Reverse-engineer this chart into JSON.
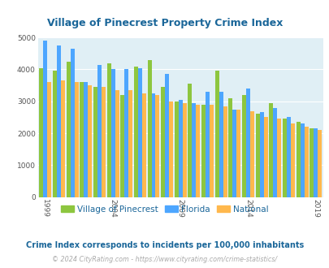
{
  "title": "Village of Pinecrest Property Crime Index",
  "subtitle": "Crime Index corresponds to incidents per 100,000 inhabitants",
  "footer": "© 2024 CityRating.com - https://www.cityrating.com/crime-statistics/",
  "years": [
    1999,
    2000,
    2001,
    2002,
    2003,
    2004,
    2005,
    2006,
    2007,
    2008,
    2009,
    2010,
    2011,
    2012,
    2013,
    2014,
    2015,
    2016,
    2017,
    2018,
    2019
  ],
  "pinecrest": [
    4050,
    3950,
    4250,
    3600,
    3450,
    4200,
    3200,
    4100,
    4300,
    3450,
    3000,
    3550,
    2900,
    3950,
    3100,
    3200,
    2600,
    2950,
    2450,
    2350,
    2150
  ],
  "florida": [
    4900,
    4750,
    4650,
    3600,
    4150,
    4000,
    4000,
    4050,
    3250,
    3850,
    3050,
    2950,
    3300,
    3300,
    2750,
    3400,
    2650,
    2800,
    2500,
    2300,
    2150
  ],
  "national": [
    3600,
    3650,
    3600,
    3500,
    3450,
    3350,
    3350,
    3250,
    3200,
    3000,
    2950,
    2900,
    2900,
    2850,
    2750,
    2700,
    2500,
    2450,
    2300,
    2200,
    2100
  ],
  "pinecrest_color": "#8dc63f",
  "florida_color": "#4da6ff",
  "national_color": "#ffb84d",
  "plot_background": "#e0eff5",
  "ylim": [
    0,
    5000
  ],
  "yticks": [
    0,
    1000,
    2000,
    3000,
    4000,
    5000
  ],
  "xtick_years": [
    1999,
    2004,
    2009,
    2014,
    2019
  ],
  "title_color": "#1a6699",
  "subtitle_color": "#1a6699",
  "footer_color": "#aaaaaa"
}
